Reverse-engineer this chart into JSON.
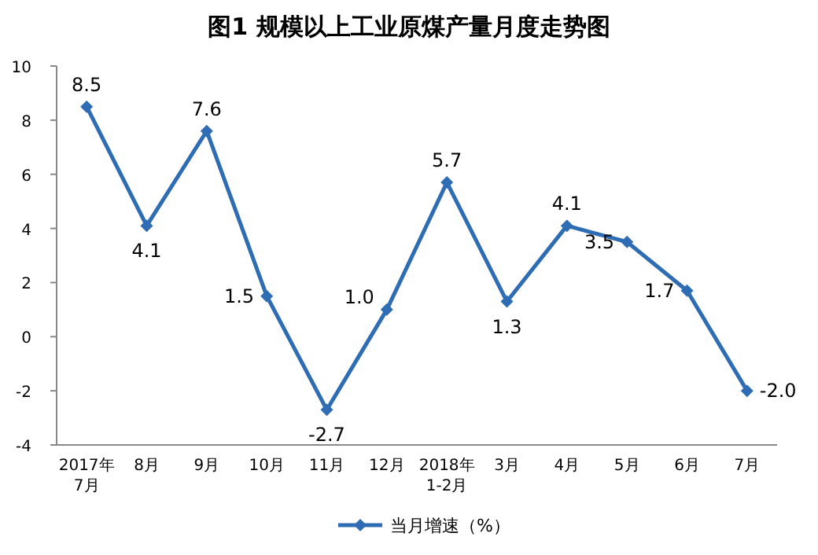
{
  "chart_data": {
    "type": "line",
    "title": "图1  规模以上工业原煤产量月度走势图",
    "categories": [
      "2017年7月",
      "8月",
      "9月",
      "10月",
      "11月",
      "12月",
      "2018年1-2月",
      "3月",
      "4月",
      "5月",
      "6月",
      "7月"
    ],
    "series": [
      {
        "name": "当月增速（%）",
        "color": "#2e6db4",
        "values": [
          8.5,
          4.1,
          7.6,
          1.5,
          -2.7,
          1.0,
          5.7,
          1.3,
          4.1,
          3.5,
          1.7,
          -2.0
        ],
        "value_labels": [
          "8.5",
          "4.1",
          "7.6",
          "1.5",
          "-2.7",
          "1.0",
          "5.7",
          "1.3",
          "4.1",
          "3.5",
          "1.7",
          "-2.0"
        ]
      }
    ],
    "ylim": [
      -4,
      10
    ],
    "yticks": [
      -4,
      -2,
      0,
      2,
      4,
      6,
      8,
      10
    ],
    "legend": "bottom",
    "marker": "diamond",
    "grid": false
  }
}
